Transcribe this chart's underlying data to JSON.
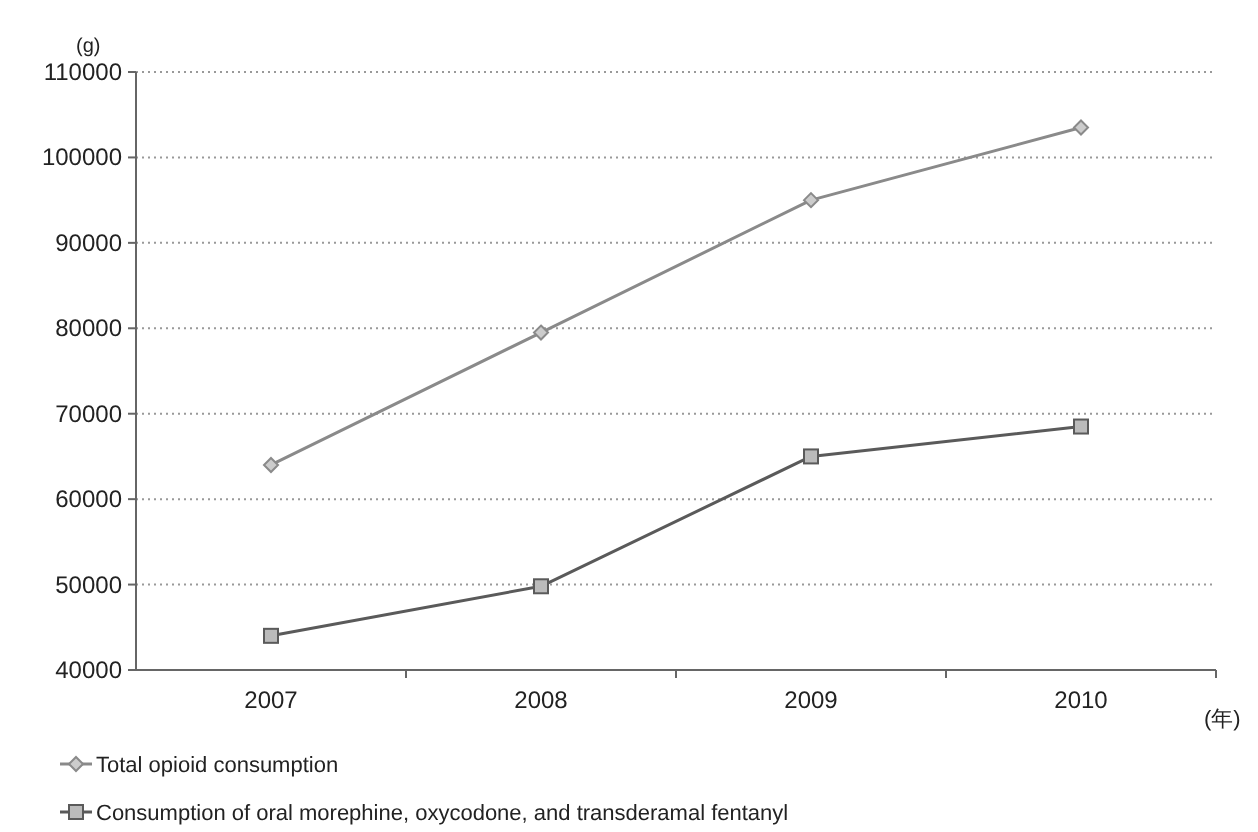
{
  "chart_data": {
    "type": "line",
    "ylabel": "(g)",
    "xlabel": "(年)",
    "categories": [
      "2007",
      "2008",
      "2009",
      "2010"
    ],
    "series": [
      {
        "name": "Total opioid consumption",
        "color": "#8a8a8a",
        "marker": "diamond",
        "values": [
          64000,
          79500,
          95000,
          103500
        ]
      },
      {
        "name": "Consumption of oral morephine, oxycodone, and transderamal fentanyl",
        "color": "#5a5a5a",
        "marker": "square",
        "values": [
          44000,
          49800,
          65000,
          68500
        ]
      }
    ],
    "ylim": [
      40000,
      110000
    ],
    "yticks": [
      40000,
      50000,
      60000,
      70000,
      80000,
      90000,
      100000,
      110000
    ],
    "grid": "y",
    "legend": "bottom"
  }
}
